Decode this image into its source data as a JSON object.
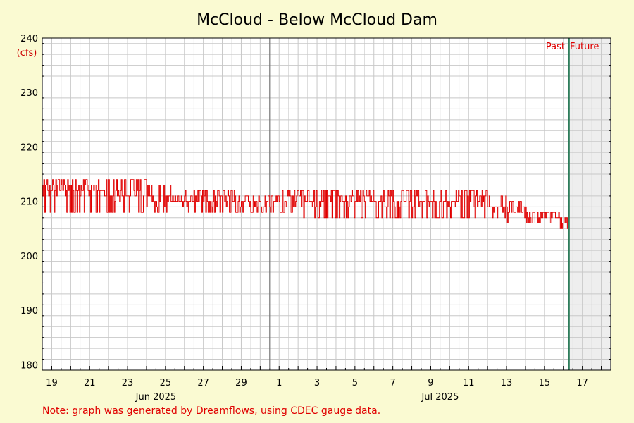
{
  "colors": {
    "background": "#fafad2",
    "plot_bg": "#ffffff",
    "future_bg": "#eeeeee",
    "series": "#e00000",
    "now_line": "#2e7d5b",
    "grid": "#c8c8c8",
    "grid_major": "#999999"
  },
  "note": "Note: graph was generated by Dreamflows, using CDEC gauge data.",
  "markers": {
    "past": "Past",
    "future": "Future"
  },
  "chart_data": {
    "type": "line",
    "title": "McCloud - Below McCloud Dam",
    "ylabel": "(cfs)",
    "ylim": [
      179,
      240
    ],
    "yticks": [
      180,
      190,
      200,
      210,
      220,
      230,
      240
    ],
    "xlim_days": [
      18.5,
      48.5
    ],
    "now_day": 46.3,
    "grid": true,
    "xticks": [
      {
        "day": 19,
        "label": "19"
      },
      {
        "day": 21,
        "label": "21"
      },
      {
        "day": 23,
        "label": "23"
      },
      {
        "day": 25,
        "label": "25"
      },
      {
        "day": 27,
        "label": "27"
      },
      {
        "day": 29,
        "label": "29"
      },
      {
        "day": 31,
        "label": "1"
      },
      {
        "day": 33,
        "label": "3"
      },
      {
        "day": 35,
        "label": "5"
      },
      {
        "day": 37,
        "label": "7"
      },
      {
        "day": 39,
        "label": "9"
      },
      {
        "day": 41,
        "label": "11"
      },
      {
        "day": 43,
        "label": "13"
      },
      {
        "day": 45,
        "label": "15"
      },
      {
        "day": 47,
        "label": "17"
      }
    ],
    "month_labels": [
      {
        "day": 24.5,
        "label": "Jun 2025"
      },
      {
        "day": 39.5,
        "label": "Jul 2025"
      }
    ],
    "series": [
      {
        "x": [
          18.5,
          19.5,
          20.5,
          21.5,
          22.5,
          23.5,
          24.5,
          25.5,
          26.5,
          27.5,
          28.5,
          29.5,
          30.5,
          31.5,
          32.5,
          33.5,
          34.5,
          35.5,
          36.5,
          37.5,
          38.5,
          39.5,
          40.5,
          41.5,
          42.5,
          43.5,
          44.5,
          45.5,
          46.3
        ],
        "values": [
          212,
          212,
          212,
          212,
          211,
          211,
          210,
          210,
          210,
          210,
          210,
          210,
          210,
          210,
          210,
          210,
          210,
          210,
          210,
          210,
          210,
          210,
          210,
          210,
          209,
          208,
          207,
          207,
          206
        ],
        "osc_low": [
          208,
          208,
          208,
          208,
          208,
          208,
          208,
          208,
          208,
          208,
          208,
          208,
          208,
          208,
          207,
          207,
          207,
          207,
          207,
          207,
          207,
          207,
          207,
          207,
          207,
          206,
          206,
          205,
          205
        ],
        "osc_high": [
          214,
          214,
          214,
          214,
          214,
          214,
          213,
          213,
          212,
          212,
          212,
          211,
          211,
          212,
          212,
          212,
          212,
          212,
          212,
          212,
          212,
          212,
          212,
          212,
          211,
          210,
          208,
          208,
          207
        ]
      }
    ]
  }
}
